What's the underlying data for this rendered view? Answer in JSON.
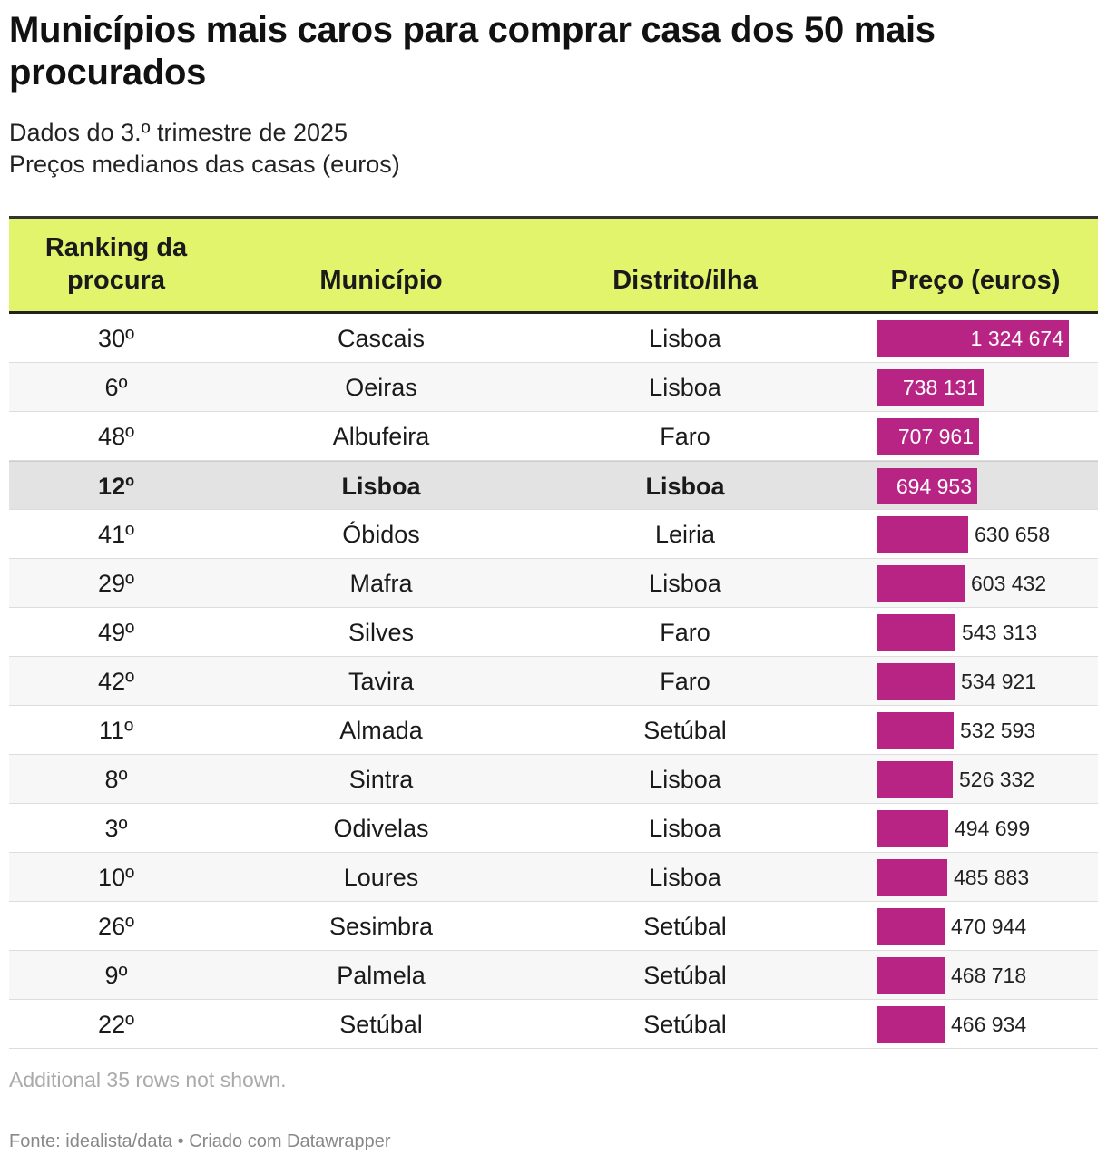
{
  "title": "Municípios mais caros para comprar casa dos 50 mais procurados",
  "subtitle": {
    "line1": "Dados do 3.º trimestre de 2025",
    "line2": "Preços medianos das casas (euros)"
  },
  "colors": {
    "header_bg": "#e1f46c",
    "bar": "#b82484",
    "highlight_row": "#e3e3e3"
  },
  "chart_data": {
    "type": "table",
    "columns": [
      "Ranking da procura",
      "Município",
      "Distrito/ilha",
      "Preço (euros)"
    ],
    "rows": [
      {
        "rank": "30º",
        "municipio": "Cascais",
        "distrito": "Lisboa",
        "preco": 1324674,
        "preco_label": "1 324 674"
      },
      {
        "rank": "6º",
        "municipio": "Oeiras",
        "distrito": "Lisboa",
        "preco": 738131,
        "preco_label": "738 131"
      },
      {
        "rank": "48º",
        "municipio": "Albufeira",
        "distrito": "Faro",
        "preco": 707961,
        "preco_label": "707 961"
      },
      {
        "rank": "12º",
        "municipio": "Lisboa",
        "distrito": "Lisboa",
        "preco": 694953,
        "preco_label": "694 953",
        "highlight": true
      },
      {
        "rank": "41º",
        "municipio": "Óbidos",
        "distrito": "Leiria",
        "preco": 630658,
        "preco_label": "630 658"
      },
      {
        "rank": "29º",
        "municipio": "Mafra",
        "distrito": "Lisboa",
        "preco": 603432,
        "preco_label": "603 432"
      },
      {
        "rank": "49º",
        "municipio": "Silves",
        "distrito": "Faro",
        "preco": 543313,
        "preco_label": "543 313"
      },
      {
        "rank": "42º",
        "municipio": "Tavira",
        "distrito": "Faro",
        "preco": 534921,
        "preco_label": "534 921"
      },
      {
        "rank": "11º",
        "municipio": "Almada",
        "distrito": "Setúbal",
        "preco": 532593,
        "preco_label": "532 593"
      },
      {
        "rank": "8º",
        "municipio": "Sintra",
        "distrito": "Lisboa",
        "preco": 526332,
        "preco_label": "526 332"
      },
      {
        "rank": "3º",
        "municipio": "Odivelas",
        "distrito": "Lisboa",
        "preco": 494699,
        "preco_label": "494 699"
      },
      {
        "rank": "10º",
        "municipio": "Loures",
        "distrito": "Lisboa",
        "preco": 485883,
        "preco_label": "485 883"
      },
      {
        "rank": "26º",
        "municipio": "Sesimbra",
        "distrito": "Setúbal",
        "preco": 470944,
        "preco_label": "470 944"
      },
      {
        "rank": "9º",
        "municipio": "Palmela",
        "distrito": "Setúbal",
        "preco": 468718,
        "preco_label": "468 718"
      },
      {
        "rank": "22º",
        "municipio": "Setúbal",
        "distrito": "Setúbal",
        "preco": 466934,
        "preco_label": "466 934"
      }
    ],
    "bar_max": 1324674
  },
  "header": {
    "col1_line1": "Ranking da",
    "col1_line2": "procura",
    "col2": "Município",
    "col3": "Distrito/ilha",
    "col4": "Preço (euros)"
  },
  "note": "Additional 35 rows not shown.",
  "footer": "Fonte: idealista/data • Criado com Datawrapper"
}
